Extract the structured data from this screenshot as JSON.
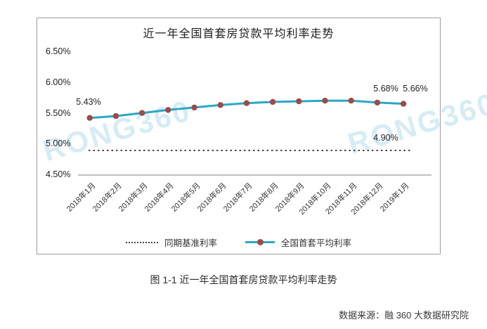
{
  "page": {
    "caption": "图 1-1 近一年全国首套房贷款平均利率走势",
    "source": "数据来源：融 360 大数据研究院",
    "watermark": "RONG360"
  },
  "chart_data": {
    "type": "line",
    "title": "近一年全国首套房贷款平均利率走势",
    "categories": [
      "2018年1月",
      "2018年2月",
      "2018年3月",
      "2018年4月",
      "2018年5月",
      "2018年6月",
      "2018年7月",
      "2018年8月",
      "2018年9月",
      "2018年10月",
      "2018年11月",
      "2018年12月",
      "2019年1月"
    ],
    "series": [
      {
        "name": "全国首套平均利率",
        "type": "line-marker",
        "color": "#2ba7c6",
        "marker_color": "#9e4a48",
        "values": [
          5.43,
          5.46,
          5.51,
          5.56,
          5.6,
          5.64,
          5.67,
          5.69,
          5.7,
          5.71,
          5.71,
          5.68,
          5.66
        ]
      },
      {
        "name": "同期基准利率",
        "type": "dotted",
        "color": "#45454d",
        "values": [
          4.9,
          4.9,
          4.9,
          4.9,
          4.9,
          4.9,
          4.9,
          4.9,
          4.9,
          4.9,
          4.9,
          4.9,
          4.9
        ]
      }
    ],
    "yticks": [
      "6.50%",
      "6.00%",
      "5.50%",
      "5.00%",
      "4.50%"
    ],
    "ylim": [
      4.5,
      6.5
    ],
    "grid": false,
    "legend_position": "bottom",
    "legend": [
      {
        "label": "同期基准利率"
      },
      {
        "label": "全国首套平均利率"
      }
    ],
    "annotations": [
      {
        "text": "5.43%",
        "target": "first-point"
      },
      {
        "text": "5.68%",
        "target": "point-2018-12"
      },
      {
        "text": "5.66%",
        "target": "point-2019-01"
      },
      {
        "text": "4.90%",
        "target": "baseline"
      }
    ]
  }
}
